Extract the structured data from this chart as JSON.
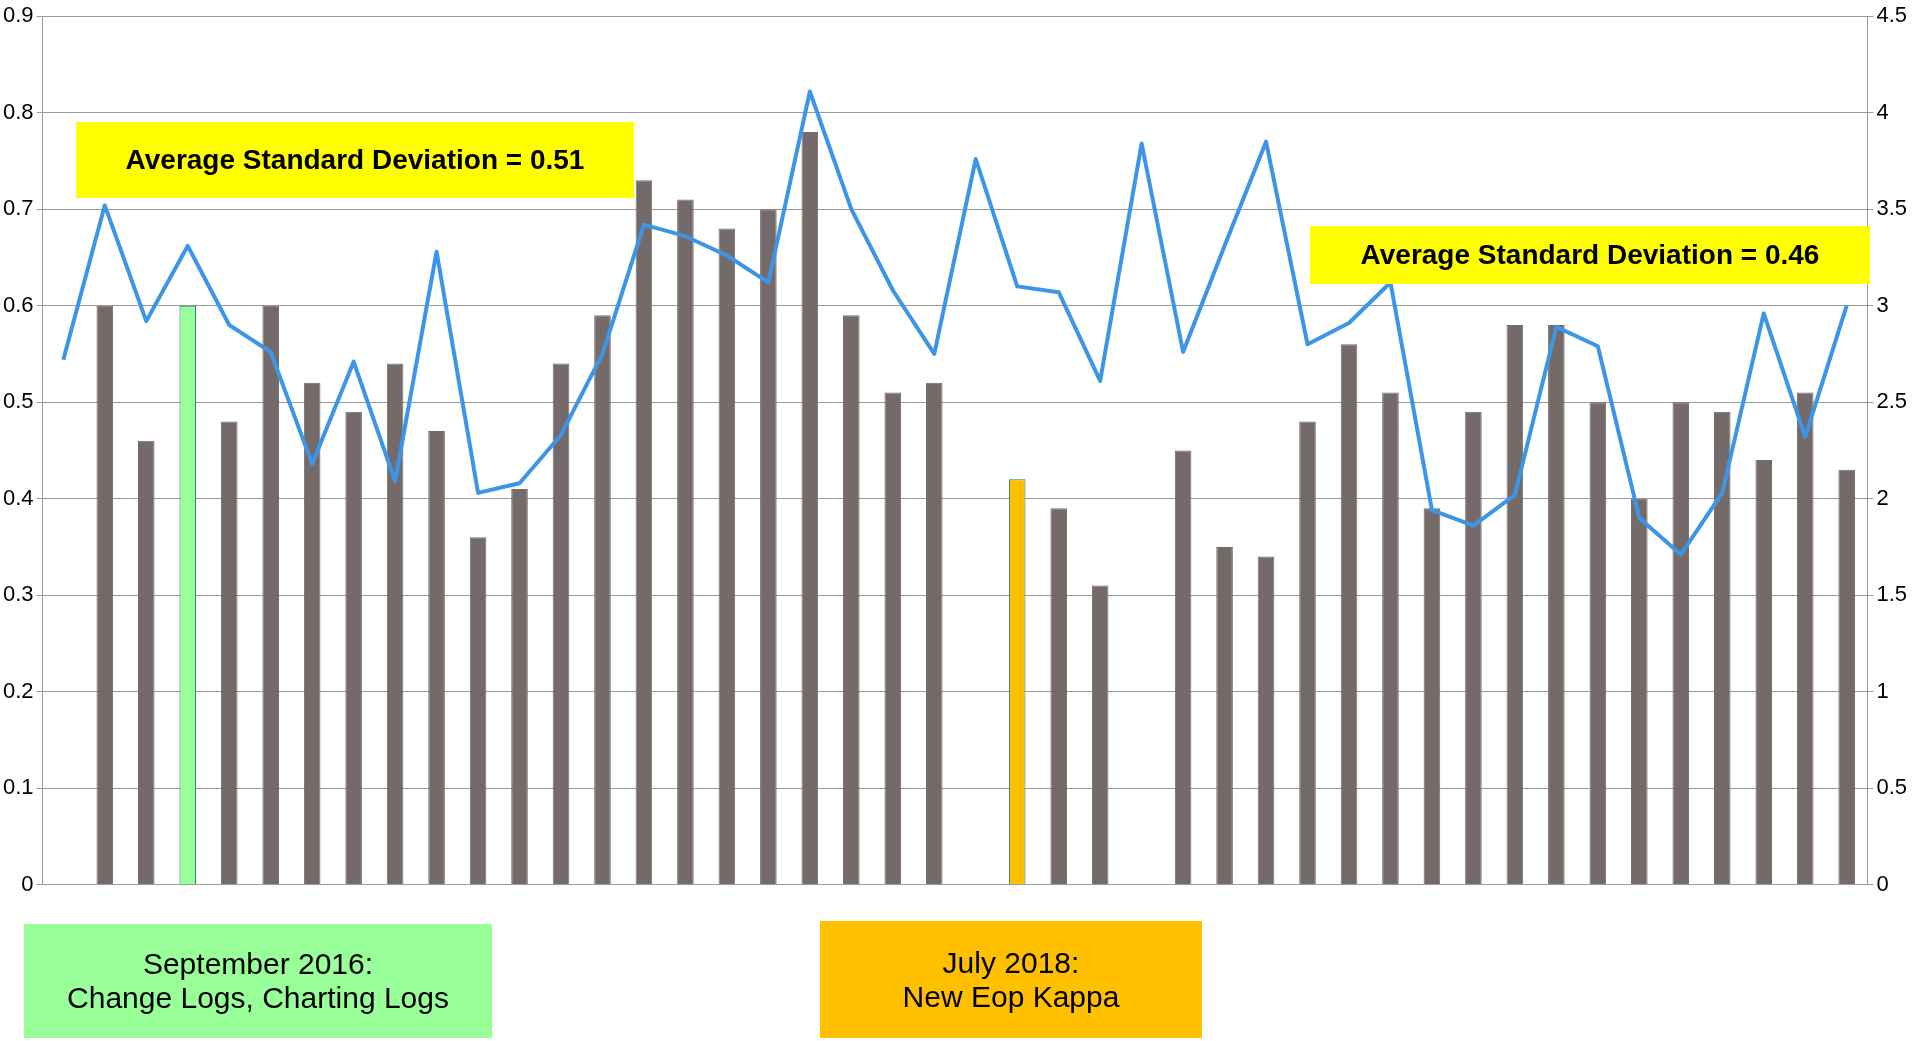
{
  "chart_data": {
    "type": "bar",
    "categories": [
      null,
      null,
      null,
      null,
      null,
      null,
      null,
      null,
      null,
      null,
      null,
      null,
      null,
      null,
      null,
      null,
      null,
      null,
      null,
      null,
      null,
      null,
      null,
      null,
      null,
      null,
      null,
      null,
      null,
      null,
      null,
      null,
      null,
      null,
      null,
      null,
      null,
      null,
      null,
      null,
      null,
      null,
      null,
      null
    ],
    "series": [
      {
        "axis": "y",
        "color": "#756a6a",
        "colors": [
          "#756a6a",
          "#756a6a",
          "#756a6a",
          "#99ff99",
          "#756a6a",
          "#756a6a",
          "#756a6a",
          "#756a6a",
          "#756a6a",
          "#756a6a",
          "#756a6a",
          "#756a6a",
          "#756a6a",
          "#756a6a",
          "#756a6a",
          "#756a6a",
          "#756a6a",
          "#756a6a",
          "#756a6a",
          "#756a6a",
          "#756a6a",
          "#756a6a",
          "#756a6a",
          "#ffc000",
          "#756a6a",
          "#756a6a",
          "#756a6a",
          "#756a6a",
          "#756a6a",
          "#756a6a",
          "#756a6a",
          "#756a6a",
          "#756a6a",
          "#756a6a",
          "#756a6a",
          "#756a6a",
          "#756a6a",
          "#756a6a",
          "#756a6a",
          "#756a6a",
          "#756a6a",
          "#756a6a",
          "#756a6a",
          "#756a6a"
        ],
        "values": [
          null,
          0.6,
          0.46,
          0.6,
          0.48,
          0.6,
          0.52,
          0.49,
          0.54,
          0.47,
          0.36,
          0.41,
          0.54,
          0.59,
          0.73,
          0.71,
          0.68,
          0.7,
          0.78,
          0.59,
          0.51,
          0.52,
          null,
          0.42,
          0.39,
          0.31,
          null,
          0.45,
          0.35,
          0.34,
          0.48,
          0.56,
          0.51,
          0.39,
          0.49,
          0.58,
          0.58,
          0.5,
          0.4,
          0.5,
          0.49,
          0.44,
          0.51,
          0.43
        ]
      },
      {
        "type": "line",
        "axis": "y2",
        "color": "#3d95e8",
        "values": [
          2.72,
          3.52,
          2.92,
          3.31,
          2.9,
          2.76,
          2.18,
          2.71,
          2.09,
          3.28,
          2.03,
          2.08,
          2.33,
          2.75,
          3.42,
          3.36,
          3.26,
          3.12,
          4.11,
          3.5,
          3.08,
          2.75,
          3.76,
          3.1,
          3.07,
          2.61,
          3.84,
          2.76,
          3.31,
          3.85,
          2.8,
          2.91,
          3.12,
          1.94,
          1.86,
          2.02,
          2.89,
          2.79,
          1.9,
          1.71,
          2.03,
          2.96,
          2.32,
          3.0
        ]
      }
    ],
    "ylim": [
      0,
      0.9
    ],
    "yticks": [
      0,
      0.1,
      0.2,
      0.3,
      0.4,
      0.5,
      0.6,
      0.7,
      0.8,
      0.9
    ],
    "y2lim": [
      0,
      4.5
    ],
    "y2ticks": [
      0,
      0.5,
      1,
      1.5,
      2,
      2.5,
      3,
      3.5,
      4,
      4.5
    ],
    "grid": "y",
    "legend": false,
    "marker": "none",
    "line_style": "solid",
    "annotations": [
      "Average Standard Deviation = 0.51",
      "Average Standard Deviation = 0.46",
      "September 2016:\nChange Logs, Charting Logs",
      "July 2018:\nNew Eop Kappa"
    ]
  }
}
